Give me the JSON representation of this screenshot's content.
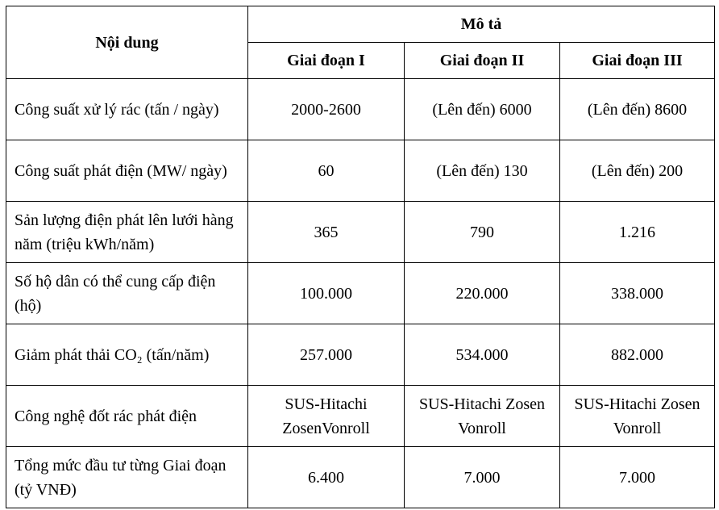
{
  "table": {
    "header": {
      "first": "Nội dung",
      "group": "Mô tả",
      "phases": [
        "Giai đoạn I",
        "Giai đoạn II",
        "Giai đoạn III"
      ]
    },
    "rows": [
      [
        "Công suất xử lý rác (tấn / ngày)",
        "2000-2600",
        "(Lên đến) 6000",
        "(Lên đến) 8600"
      ],
      [
        "Công suất phát điện (MW/ ngày)",
        "60",
        "(Lên đến) 130",
        "(Lên đến) 200"
      ],
      [
        "Sản lượng điện phát lên lưới hàng năm (triệu kWh/năm)",
        "365",
        "790",
        "1.216"
      ],
      [
        "Số hộ dân có thể cung cấp điện (hộ)",
        "100.000",
        "220.000",
        "338.000"
      ],
      [
        "Giảm phát thải CO₂ (tấn/năm)",
        "257.000",
        "534.000",
        "882.000"
      ],
      [
        "Công nghệ đốt rác phát điện",
        "SUS-Hitachi ZosenVonroll",
        "SUS-Hitachi Zosen Vonroll",
        "SUS-Hitachi Zosen Vonroll"
      ],
      [
        "Tổng mức đầu tư từng Giai đoạn (tỷ VNĐ)",
        "6.400",
        "7.000",
        "7.000"
      ]
    ]
  }
}
